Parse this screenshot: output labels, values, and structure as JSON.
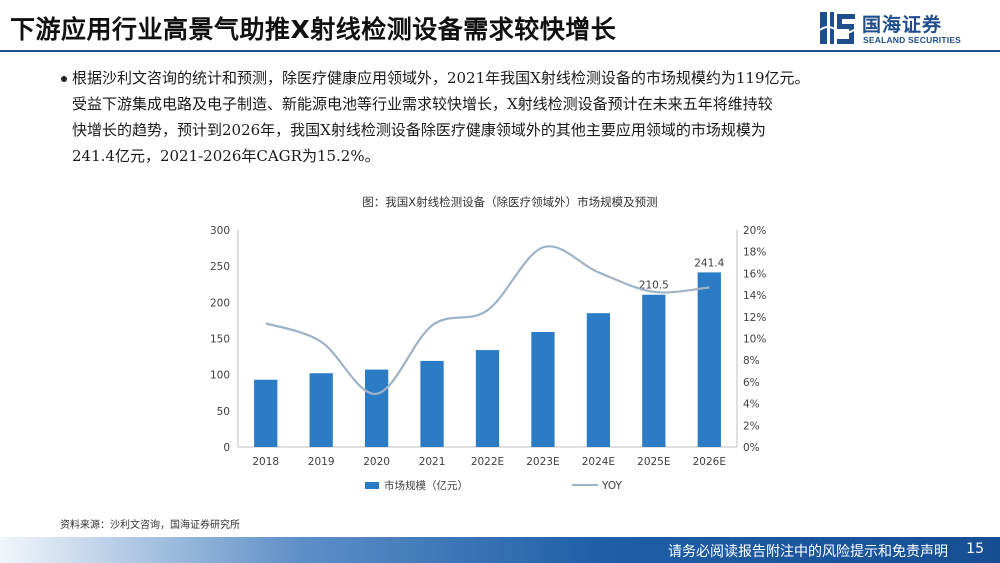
{
  "slide": {
    "title": "下游应用行业高景气助推X射线检测设备需求较快增长",
    "logo_cn": "国海证券",
    "logo_en": "SEALAND SECURITIES",
    "bullet_lines": [
      "根据沙利文咨询的统计和预测，除医疗健康应用领域外，2021年我国X射线检测设备的市场规模约为119亿元。",
      "受益下游集成电路及电子制造、新能源电池等行业需求较快增长，X射线检测设备预计在未来五年将维持较",
      "快增长的趋势，预计到2026年，我国X射线检测设备除医疗健康领域外的其他主要应用领域的市场规模为",
      "241.4亿元，2021-2026年CAGR为15.2%。"
    ],
    "source": "资料来源：沙利文咨询，国海证券研究所",
    "footer": "请务必阅读报告附注中的风险提示和免责声明",
    "page_number": "15"
  },
  "chart_data": {
    "type": "bar",
    "title": "图：我国X射线检测设备（除医疗领域外）市场规模及预测",
    "categories": [
      "2018",
      "2019",
      "2020",
      "2021",
      "2022E",
      "2023E",
      "2024E",
      "2025E",
      "2026E"
    ],
    "series": [
      {
        "name": "市场规模（亿元）",
        "type": "bar",
        "axis": "left",
        "values": [
          93,
          102,
          107,
          119,
          134,
          159,
          185,
          210.5,
          241.4
        ]
      },
      {
        "name": "YOY",
        "type": "line",
        "axis": "right",
        "values": [
          11.4,
          9.7,
          4.9,
          11.2,
          12.6,
          18.4,
          16.1,
          14.3,
          14.7
        ]
      }
    ],
    "data_labels": [
      {
        "index": 7,
        "text": "210.5"
      },
      {
        "index": 8,
        "text": "241.4"
      }
    ],
    "ylim": [
      0,
      300
    ],
    "yticks": [
      0,
      50,
      100,
      150,
      200,
      250,
      300
    ],
    "y2lim": [
      0,
      20
    ],
    "y2ticks": [
      "0%",
      "2%",
      "4%",
      "6%",
      "8%",
      "10%",
      "12%",
      "14%",
      "16%",
      "18%",
      "20%"
    ],
    "xlabel": "",
    "ylabel": "",
    "legend_position": "bottom",
    "colors": {
      "bar": "#2b7cc4",
      "line": "#9fb3c8"
    }
  }
}
